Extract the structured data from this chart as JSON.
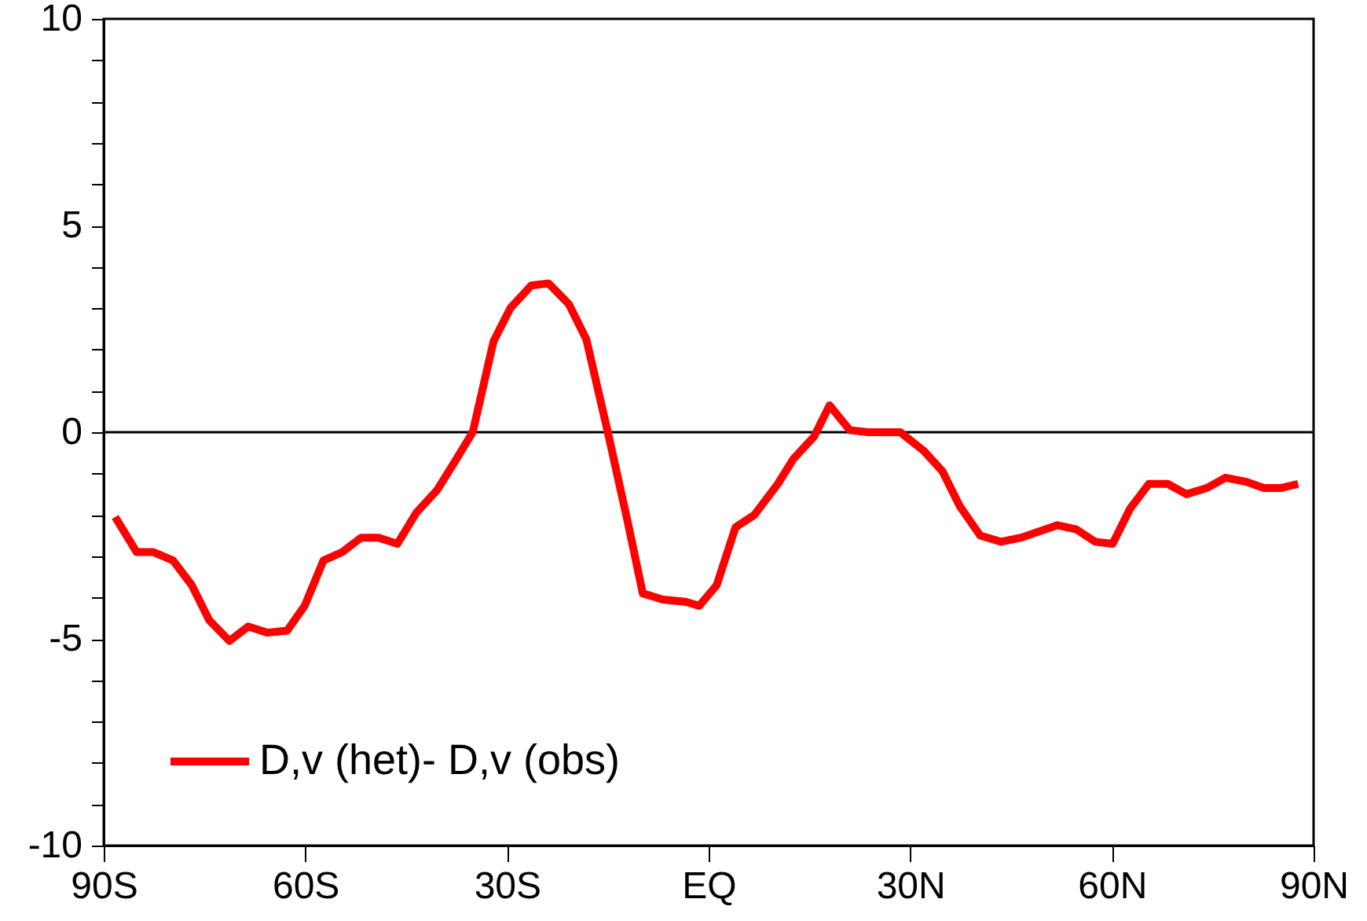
{
  "chart_data": {
    "type": "line",
    "x": [
      -88.3,
      -85.1,
      -82.6,
      -79.7,
      -76.9,
      -74.3,
      -71.3,
      -68.5,
      -65.7,
      -62.7,
      -60.1,
      -57.3,
      -54.5,
      -51.7,
      -49.1,
      -46.3,
      -43.5,
      -40.4,
      -37.9,
      -35.1,
      -32.0,
      -29.5,
      -26.4,
      -23.8,
      -20.8,
      -18.2,
      -15.0,
      -12.0,
      -9.8,
      -6.8,
      -3.5,
      -1.4,
      1.2,
      4.0,
      6.8,
      10.3,
      12.6,
      15.7,
      18.0,
      21.0,
      23.8,
      28.5,
      32.0,
      34.8,
      37.4,
      40.4,
      43.5,
      46.5,
      51.9,
      54.7,
      57.5,
      60.1,
      62.7,
      65.5,
      68.3,
      71.1,
      74.1,
      76.9,
      80.0,
      82.6,
      85.1,
      87.7
    ],
    "series": [
      {
        "name": "D,v (het)- D,v (obs)",
        "color": "#ff0000",
        "values": [
          -2.05,
          -2.9,
          -2.9,
          -3.1,
          -3.7,
          -4.55,
          -5.05,
          -4.7,
          -4.85,
          -4.8,
          -4.2,
          -3.1,
          -2.9,
          -2.55,
          -2.55,
          -2.7,
          -1.95,
          -1.4,
          -0.75,
          0.0,
          2.2,
          3.0,
          3.55,
          3.6,
          3.1,
          2.25,
          0.0,
          -2.2,
          -3.9,
          -4.05,
          -4.1,
          -4.2,
          -3.7,
          -2.3,
          -2.0,
          -1.25,
          -0.65,
          -0.1,
          0.65,
          0.05,
          0.0,
          0.0,
          -0.45,
          -0.95,
          -1.8,
          -2.5,
          -2.65,
          -2.55,
          -2.25,
          -2.35,
          -2.65,
          -2.7,
          -1.85,
          -1.25,
          -1.25,
          -1.5,
          -1.35,
          -1.1,
          -1.2,
          -1.35,
          -1.35,
          -1.25
        ]
      }
    ],
    "xlim": [
      -90,
      90
    ],
    "xticks": [
      {
        "value": -90,
        "label": "90S"
      },
      {
        "value": -60,
        "label": "60S"
      },
      {
        "value": -30,
        "label": "30S"
      },
      {
        "value": 0,
        "label": "EQ"
      },
      {
        "value": 30,
        "label": "30N"
      },
      {
        "value": 60,
        "label": "60N"
      },
      {
        "value": 90,
        "label": "90N"
      }
    ],
    "ylim": [
      -10,
      10
    ],
    "yticks": [
      -10,
      {
        "value": -9,
        "label": null
      },
      {
        "value": -8,
        "label": null
      },
      {
        "value": -7,
        "label": null
      },
      {
        "value": -6,
        "label": null
      },
      -5,
      {
        "value": -4,
        "label": null
      },
      {
        "value": -3,
        "label": null
      },
      {
        "value": -2,
        "label": null
      },
      {
        "value": -1,
        "label": null
      },
      0,
      {
        "value": 1,
        "label": null
      },
      {
        "value": 2,
        "label": null
      },
      {
        "value": 3,
        "label": null
      },
      {
        "value": 4,
        "label": null
      },
      5,
      {
        "value": 6,
        "label": null
      },
      {
        "value": 7,
        "label": null
      },
      {
        "value": 8,
        "label": null
      },
      {
        "value": 9,
        "label": null
      },
      10
    ],
    "ref_lines": [
      {
        "axis": "y",
        "value": 0,
        "color": "#000000"
      }
    ],
    "legend": "bottom left",
    "grid": false,
    "marker": "none",
    "line_style": "solid"
  }
}
